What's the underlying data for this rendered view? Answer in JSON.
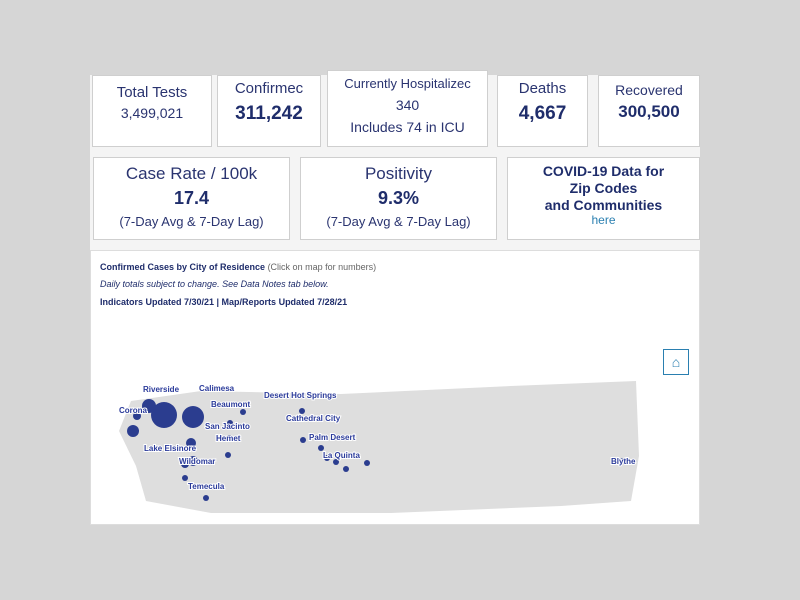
{
  "stats": {
    "total_tests": {
      "label": "Total Tests",
      "value": "3,499,021"
    },
    "confirmed": {
      "label": "Confirmec",
      "value": "311,242"
    },
    "hospitalized": {
      "label": "Currently Hospitalizec",
      "value": "340",
      "sub": "Includes 74 in ICU"
    },
    "deaths": {
      "label": "Deaths",
      "value": "4,667"
    },
    "recovered": {
      "label": "Recovered",
      "value": "300,500"
    },
    "case_rate": {
      "label": "Case Rate / 100k",
      "value": "17.4",
      "sub": "(7-Day Avg & 7-Day Lag)"
    },
    "positivity": {
      "label": "Positivity",
      "value": "9.3%",
      "sub": "(7-Day Avg & 7-Day Lag)"
    },
    "zip": {
      "line1": "COVID-19 Data for",
      "line2": "Zip Codes",
      "line3": "and Communities",
      "link": "here"
    }
  },
  "map": {
    "title": "Confirmed Cases by City of Residence",
    "title_note": "(Click on map for numbers)",
    "note": "Daily totals subject to change. See Data Notes tab below.",
    "updated": "Indicators Updated 7/30/21  |  Map/Reports Updated 7/28/21",
    "home_icon": "home-icon",
    "cities": [
      "Riverside",
      "Calimesa",
      "Corona",
      "Beaumont",
      "San Jacinto",
      "Hemet",
      "Lake Elsinore",
      "Wildomar",
      "Temecula",
      "Desert Hot Springs",
      "Cathedral City",
      "Palm Desert",
      "La Quinta",
      "Blythe"
    ],
    "accent": "#2b3d8f"
  }
}
